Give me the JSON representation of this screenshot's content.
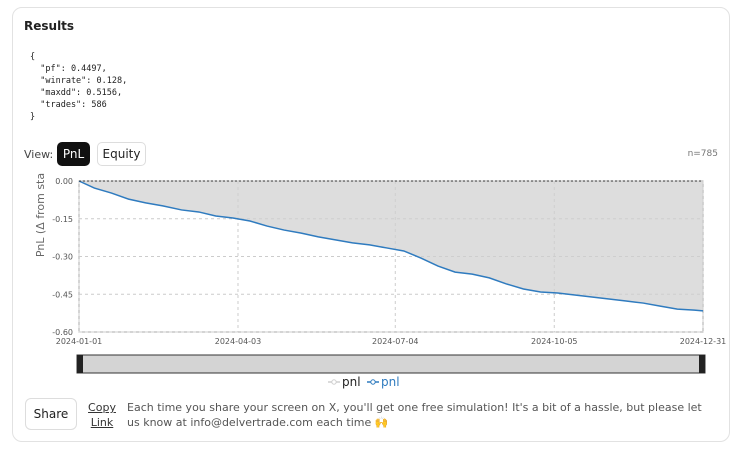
{
  "results": {
    "title": "Results",
    "code_lines": [
      "{",
      "  \"pf\": 0.4497,",
      "  \"winrate\": 0.128,",
      "  \"maxdd\": 0.5156,",
      "  \"trades\": 586",
      "}"
    ]
  },
  "view": {
    "label": "View:",
    "buttons": [
      "PnL",
      "Equity"
    ],
    "count": "n=785"
  },
  "chart_data": {
    "type": "line",
    "y_label": "PnL (Δ from sta",
    "x": [
      "2024-01-01",
      "2024-01-10",
      "2024-01-20",
      "2024-01-30",
      "2024-02-09",
      "2024-02-19",
      "2024-03-01",
      "2024-03-11",
      "2024-03-21",
      "2024-03-31",
      "2024-04-10",
      "2024-04-20",
      "2024-04-30",
      "2024-05-10",
      "2024-05-20",
      "2024-05-30",
      "2024-06-09",
      "2024-06-19",
      "2024-06-29",
      "2024-07-09",
      "2024-07-19",
      "2024-07-29",
      "2024-08-08",
      "2024-08-18",
      "2024-08-28",
      "2024-09-07",
      "2024-09-17",
      "2024-09-27",
      "2024-10-07",
      "2024-10-17",
      "2024-10-27",
      "2024-11-06",
      "2024-11-16",
      "2024-11-26",
      "2024-12-06",
      "2024-12-16",
      "2024-12-26",
      "2024-12-31"
    ],
    "series": [
      {
        "name": "pnl",
        "color": "#cfcfcf",
        "fill": true,
        "values": [
          0,
          -0.028,
          -0.048,
          -0.072,
          -0.087,
          -0.099,
          -0.115,
          -0.123,
          -0.139,
          -0.147,
          -0.159,
          -0.179,
          -0.195,
          -0.207,
          -0.222,
          -0.234,
          -0.246,
          -0.254,
          -0.266,
          -0.278,
          -0.306,
          -0.338,
          -0.362,
          -0.37,
          -0.385,
          -0.409,
          -0.429,
          -0.441,
          -0.445,
          -0.453,
          -0.461,
          -0.469,
          -0.477,
          -0.485,
          -0.497,
          -0.509,
          -0.513,
          -0.516
        ]
      },
      {
        "name": "pnl",
        "color": "#2f7bbf",
        "fill": false,
        "values": [
          0,
          -0.028,
          -0.048,
          -0.072,
          -0.087,
          -0.099,
          -0.115,
          -0.123,
          -0.139,
          -0.147,
          -0.159,
          -0.179,
          -0.195,
          -0.207,
          -0.222,
          -0.234,
          -0.246,
          -0.254,
          -0.266,
          -0.278,
          -0.306,
          -0.338,
          -0.362,
          -0.37,
          -0.385,
          -0.409,
          -0.429,
          -0.441,
          -0.445,
          -0.453,
          -0.461,
          -0.469,
          -0.477,
          -0.485,
          -0.497,
          -0.509,
          -0.513,
          -0.516
        ]
      }
    ],
    "xlim": [
      "2024-01-01",
      "2024-12-31"
    ],
    "xticks": [
      "2024-01-01",
      "2024-04-03",
      "2024-07-04",
      "2024-10-05",
      "2024-12-31"
    ],
    "ylim": [
      -0.6,
      0
    ],
    "yticks": [
      {
        "value": 0,
        "label": "0.00"
      },
      {
        "value": -0.15,
        "label": "-0.15"
      },
      {
        "value": -0.3,
        "label": "-0.30"
      },
      {
        "value": -0.45,
        "label": "-0.45"
      },
      {
        "value": -0.6,
        "label": "-0.60"
      }
    ],
    "grid": true
  },
  "footer": {
    "share": "Share",
    "copy_link": "Copy Link",
    "message": "Each time you share your screen on X, you'll get one free simulation! It's a bit of a hassle, but please let us know at info@delvertrade.com each time 🙌"
  }
}
